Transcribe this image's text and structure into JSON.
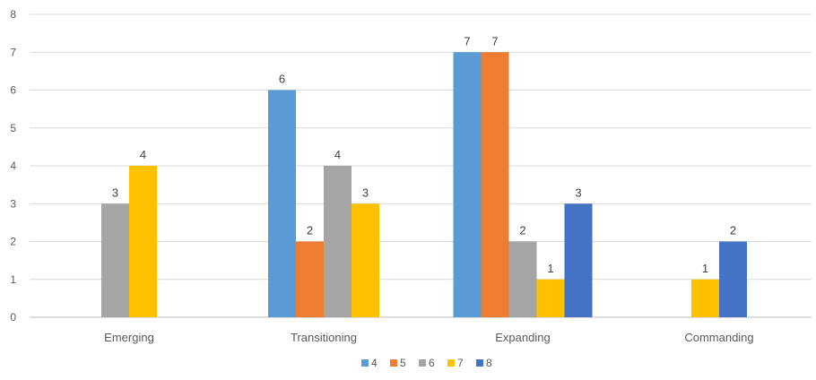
{
  "chart_data": {
    "type": "bar",
    "title": "",
    "xlabel": "",
    "ylabel": "",
    "categories": [
      "Emerging",
      "Transitioning",
      "Expanding",
      "Commanding"
    ],
    "series": [
      {
        "name": "4",
        "color": "#5b9bd5",
        "values": [
          null,
          6,
          7,
          null
        ]
      },
      {
        "name": "5",
        "color": "#ed7d31",
        "values": [
          null,
          2,
          7,
          null
        ]
      },
      {
        "name": "6",
        "color": "#a5a5a5",
        "values": [
          3,
          4,
          2,
          null
        ]
      },
      {
        "name": "7",
        "color": "#ffc000",
        "values": [
          4,
          3,
          1,
          1
        ]
      },
      {
        "name": "8",
        "color": "#4472c4",
        "values": [
          null,
          null,
          3,
          2
        ]
      }
    ],
    "ylim": [
      0,
      8
    ],
    "yticks": [
      0,
      1,
      2,
      3,
      4,
      5,
      6,
      7,
      8
    ],
    "grid": true,
    "legend_position": "bottom",
    "data_labels": true
  }
}
